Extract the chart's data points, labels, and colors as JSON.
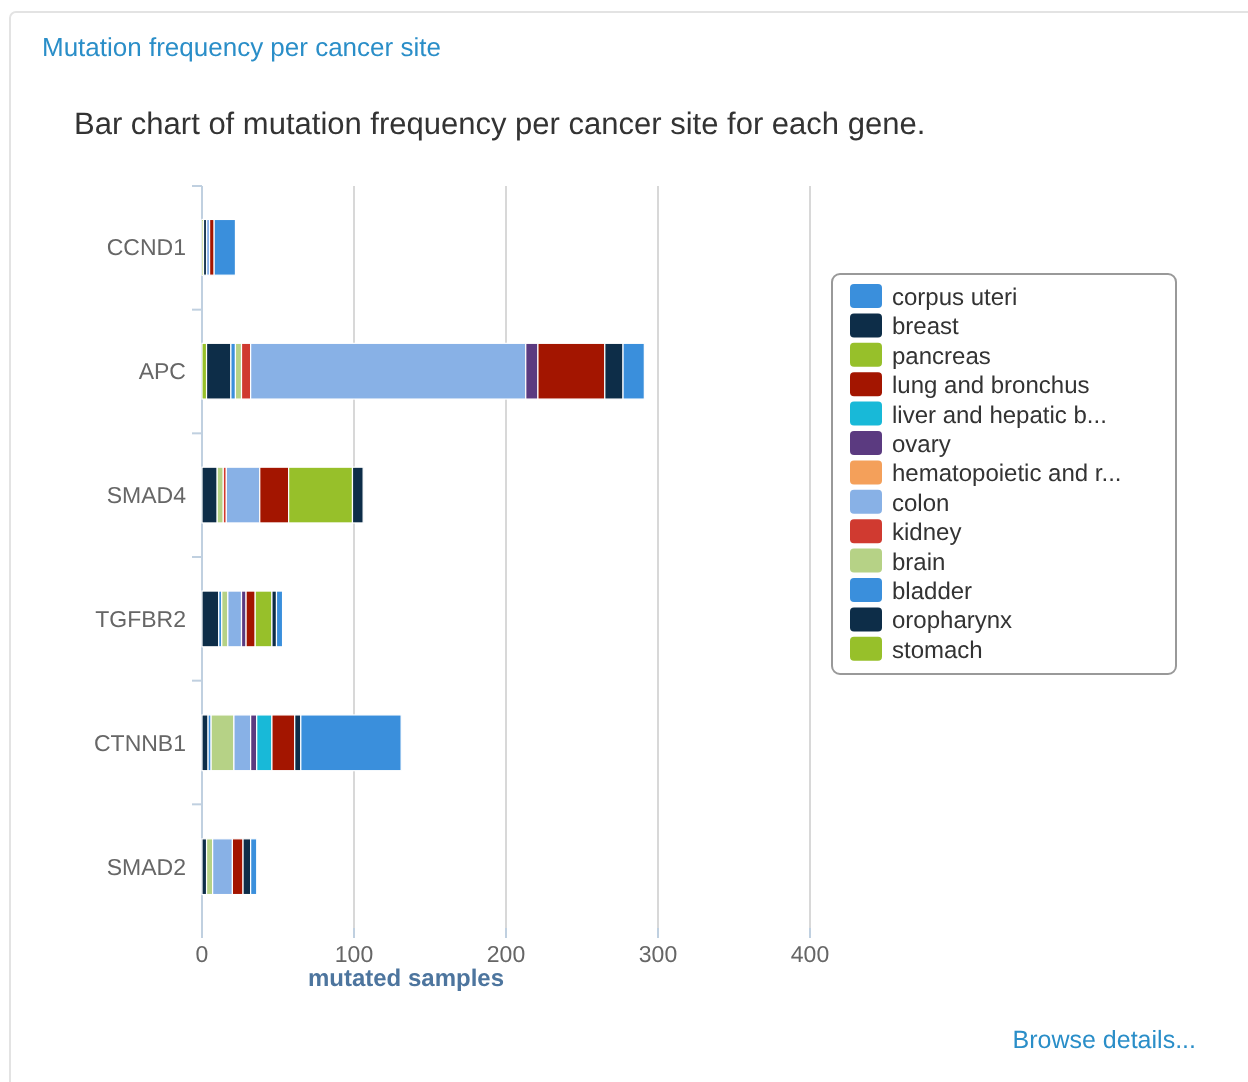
{
  "chart_data": {
    "type": "bar",
    "orientation": "horizontal",
    "stacked": true,
    "title": "Mutation frequency per cancer site",
    "subtitle": "Bar chart of mutation frequency per cancer site for each gene.",
    "xlabel": "mutated samples",
    "annotations": [
      "Browse details..."
    ],
    "categories": [
      "CCND1",
      "APC",
      "SMAD4",
      "TGFBR2",
      "CTNNB1",
      "SMAD2"
    ],
    "xlim": [
      0,
      400
    ],
    "xticks": [
      0,
      100,
      200,
      300,
      400
    ],
    "grid": "x",
    "legend": "right",
    "series": [
      {
        "name": "stomach",
        "color": "#97c02a",
        "values": [
          1,
          3,
          0,
          0,
          0,
          0
        ]
      },
      {
        "name": "oropharynx",
        "color": "#0d2d48",
        "values": [
          2,
          16,
          10,
          11,
          4,
          3
        ]
      },
      {
        "name": "bladder",
        "color": "#3a8fdc",
        "values": [
          0,
          3,
          0,
          2,
          2,
          0
        ]
      },
      {
        "name": "brain",
        "color": "#b6d286",
        "values": [
          0,
          4,
          4,
          4,
          15,
          4
        ]
      },
      {
        "name": "kidney",
        "color": "#d03a30",
        "values": [
          null,
          6,
          2,
          0,
          0,
          0
        ]
      },
      {
        "name": "colon",
        "color": "#88b1e6",
        "values": [
          2,
          181,
          22,
          9,
          11,
          13
        ]
      },
      {
        "name": "hematopoietic and r...",
        "color": "#f4a05a",
        "values": [
          0,
          0,
          0,
          0,
          0,
          0
        ]
      },
      {
        "name": "ovary",
        "color": "#5b3a80",
        "values": [
          0,
          8,
          0,
          3,
          4,
          0
        ]
      },
      {
        "name": "liver and hepatic b...",
        "color": "#18b9d8",
        "values": [
          0,
          0,
          0,
          0,
          10,
          0
        ]
      },
      {
        "name": "lung and bronchus",
        "color": "#a31500",
        "values": [
          3,
          44,
          19,
          6,
          15,
          7
        ]
      },
      {
        "name": "pancreas",
        "color": "#97c02a",
        "values": [
          0,
          0,
          42,
          11,
          0,
          0
        ]
      },
      {
        "name": "breast",
        "color": "#0d2d48",
        "values": [
          0,
          12,
          7,
          3,
          4,
          5
        ]
      },
      {
        "name": "corpus uteri",
        "color": "#3a8fdc",
        "values": [
          14,
          14,
          0,
          4,
          66,
          4
        ]
      }
    ]
  }
}
